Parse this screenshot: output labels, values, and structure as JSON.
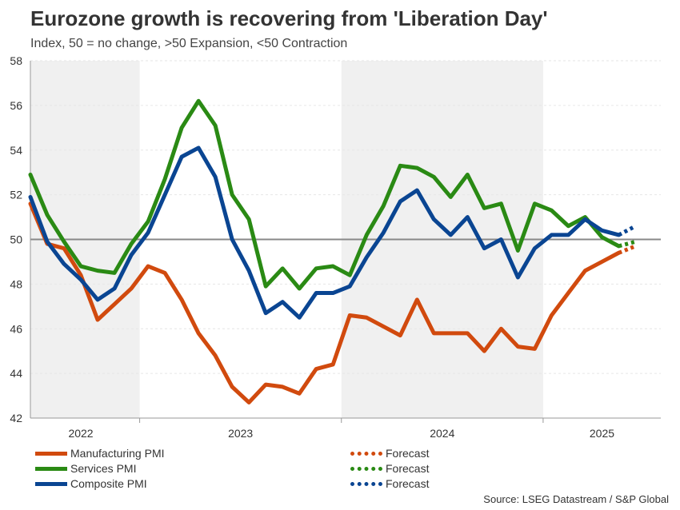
{
  "chart_data": {
    "type": "line",
    "title": "Eurozone growth is recovering from 'Liberation Day'",
    "subtitle": "Index, 50 = no change, >50 Expansion, <50 Contraction",
    "ylim": [
      42,
      58
    ],
    "yticks": [
      42,
      44,
      46,
      48,
      50,
      52,
      54,
      56,
      58
    ],
    "reference_line": 50,
    "x_index_range": [
      0,
      37.5
    ],
    "shaded_ranges": [
      [
        0,
        6.5
      ],
      [
        18.5,
        30.5
      ]
    ],
    "year_dividers": [
      6.5,
      18.5,
      30.5
    ],
    "year_labels": [
      {
        "label": "2022",
        "x": 3
      },
      {
        "label": "2023",
        "x": 12.5
      },
      {
        "label": "2024",
        "x": 24.5
      },
      {
        "label": "2025",
        "x": 34
      }
    ],
    "series": [
      {
        "name": "Manufacturing PMI",
        "color": "#d14a0e",
        "values": [
          51.6,
          49.8,
          49.6,
          48.4,
          46.4,
          47.1,
          47.8,
          48.8,
          48.5,
          47.3,
          45.8,
          44.8,
          43.4,
          42.7,
          43.5,
          43.4,
          43.1,
          44.2,
          44.4,
          46.6,
          46.5,
          46.1,
          45.7,
          47.3,
          45.8,
          45.8,
          45.8,
          45.0,
          46.0,
          45.2,
          45.1,
          46.6,
          47.6,
          48.6,
          49.0,
          49.4
        ],
        "forecast": [
          49.4,
          49.7
        ]
      },
      {
        "name": "Services PMI",
        "color": "#2a8a14",
        "values": [
          52.9,
          51.1,
          49.9,
          48.8,
          48.6,
          48.5,
          49.8,
          50.8,
          52.7,
          55.0,
          56.2,
          55.1,
          52.0,
          50.9,
          47.9,
          48.7,
          47.8,
          48.7,
          48.8,
          48.4,
          50.2,
          51.5,
          53.3,
          53.2,
          52.8,
          51.9,
          52.9,
          51.4,
          51.6,
          49.5,
          51.6,
          51.3,
          50.6,
          51.0,
          50.1,
          49.7
        ],
        "forecast": [
          49.7,
          49.9
        ]
      },
      {
        "name": "Composite PMI",
        "color": "#0a4592",
        "values": [
          51.9,
          49.9,
          48.9,
          48.2,
          47.3,
          47.8,
          49.3,
          50.3,
          52.0,
          53.7,
          54.1,
          52.8,
          50.0,
          48.6,
          46.7,
          47.2,
          46.5,
          47.6,
          47.6,
          47.9,
          49.2,
          50.3,
          51.7,
          52.2,
          50.9,
          50.2,
          51.0,
          49.6,
          50.0,
          48.3,
          49.6,
          50.2,
          50.2,
          50.9,
          50.4,
          50.2
        ],
        "forecast": [
          50.2,
          50.6
        ]
      }
    ],
    "legend": [
      {
        "label": "Manufacturing PMI",
        "color": "#d14a0e",
        "style": "solid"
      },
      {
        "label": "Services PMI",
        "color": "#2a8a14",
        "style": "solid"
      },
      {
        "label": "Composite PMI",
        "color": "#0a4592",
        "style": "solid"
      },
      {
        "label": "Forecast",
        "color": "#d14a0e",
        "style": "dotted"
      },
      {
        "label": "Forecast",
        "color": "#2a8a14",
        "style": "dotted"
      },
      {
        "label": "Forecast",
        "color": "#0a4592",
        "style": "dotted"
      }
    ],
    "source": "Source: LSEG Datastream / S&P Global"
  }
}
